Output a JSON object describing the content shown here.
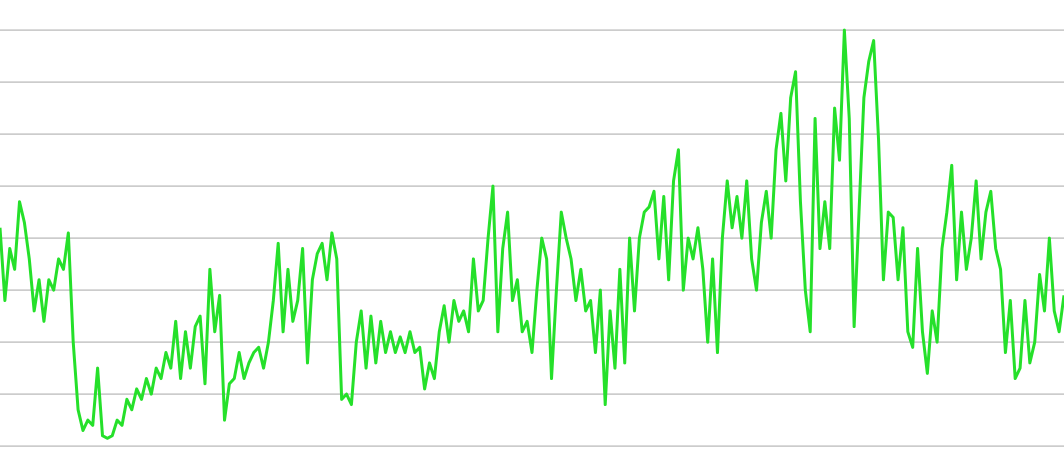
{
  "chart_data": {
    "type": "line",
    "color": "#25e02a",
    "grid": true,
    "ylim": [
      -0.44,
      8.58
    ],
    "yticks": [
      0,
      1,
      2,
      3,
      4,
      5,
      6,
      7,
      8
    ],
    "values": [
      4.2,
      2.8,
      3.8,
      3.4,
      4.7,
      4.3,
      3.6,
      2.6,
      3.2,
      2.4,
      3.2,
      3.0,
      3.6,
      3.4,
      4.1,
      2.0,
      0.7,
      0.3,
      0.5,
      0.4,
      1.5,
      0.2,
      0.15,
      0.2,
      0.5,
      0.4,
      0.9,
      0.7,
      1.1,
      0.9,
      1.3,
      1.0,
      1.5,
      1.3,
      1.8,
      1.5,
      2.4,
      1.3,
      2.2,
      1.5,
      2.3,
      2.5,
      1.2,
      3.4,
      2.2,
      2.9,
      0.5,
      1.2,
      1.3,
      1.8,
      1.3,
      1.6,
      1.8,
      1.9,
      1.5,
      2.0,
      2.8,
      3.9,
      2.2,
      3.4,
      2.4,
      2.8,
      3.8,
      1.6,
      3.2,
      3.7,
      3.9,
      3.2,
      4.1,
      3.6,
      0.9,
      1.0,
      0.8,
      2.0,
      2.6,
      1.5,
      2.5,
      1.6,
      2.4,
      1.8,
      2.2,
      1.8,
      2.1,
      1.8,
      2.2,
      1.8,
      1.9,
      1.1,
      1.6,
      1.3,
      2.2,
      2.7,
      2.0,
      2.8,
      2.4,
      2.6,
      2.2,
      3.6,
      2.6,
      2.8,
      4.0,
      5.0,
      2.2,
      3.8,
      4.5,
      2.8,
      3.2,
      2.2,
      2.4,
      1.8,
      3.0,
      4.0,
      3.6,
      1.3,
      3.0,
      4.5,
      4.0,
      3.6,
      2.8,
      3.4,
      2.6,
      2.8,
      1.8,
      3.0,
      0.8,
      2.6,
      1.5,
      3.4,
      1.6,
      4.0,
      2.6,
      4.0,
      4.5,
      4.6,
      4.9,
      3.6,
      4.8,
      3.2,
      5.1,
      5.7,
      3.0,
      4.0,
      3.6,
      4.2,
      3.4,
      2.0,
      3.6,
      1.8,
      4.0,
      5.1,
      4.2,
      4.8,
      4.0,
      5.1,
      3.6,
      3.0,
      4.3,
      4.9,
      4.0,
      5.7,
      6.4,
      5.1,
      6.7,
      7.2,
      4.7,
      3.0,
      2.2,
      6.3,
      3.8,
      4.7,
      3.8,
      6.5,
      5.5,
      8.0,
      6.3,
      2.3,
      4.5,
      6.7,
      7.4,
      7.8,
      5.9,
      3.2,
      4.5,
      4.4,
      3.2,
      4.2,
      2.2,
      1.9,
      3.8,
      2.2,
      1.4,
      2.6,
      2.0,
      3.8,
      4.5,
      5.4,
      3.2,
      4.5,
      3.4,
      4.0,
      5.1,
      3.6,
      4.5,
      4.9,
      3.8,
      3.4,
      1.8,
      2.8,
      1.3,
      1.5,
      2.8,
      1.6,
      2.0,
      3.3,
      2.6,
      4.0,
      2.6,
      2.2,
      2.9
    ]
  }
}
